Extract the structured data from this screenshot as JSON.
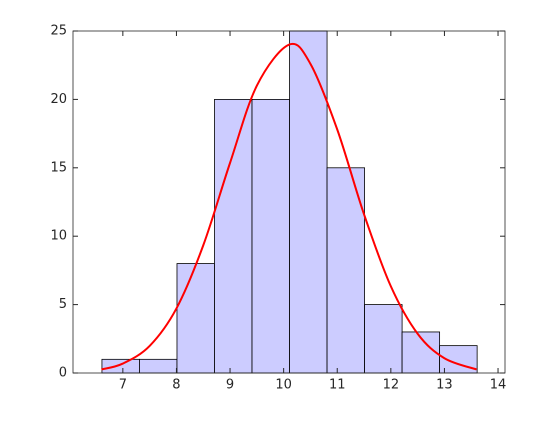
{
  "chart_data": {
    "type": "histogram",
    "bins": [
      6.61,
      7.31,
      8.01,
      8.71,
      9.41,
      10.11,
      10.81,
      11.51,
      12.21,
      12.91,
      13.61
    ],
    "counts": [
      1,
      1,
      8,
      20,
      20,
      25,
      15,
      5,
      3,
      2
    ],
    "color": "#ccccff",
    "edgecolor": "#000000",
    "xlim": [
      6.07,
      14.13
    ],
    "ylim": [
      0,
      25
    ],
    "xticks": [
      7,
      8,
      9,
      10,
      11,
      12,
      13,
      14
    ],
    "yticks": [
      0,
      5,
      10,
      15,
      20,
      25
    ],
    "fit": {
      "type": "line",
      "color": "#ff0000",
      "x": [
        6.6,
        7.0,
        7.5,
        8.0,
        8.5,
        9.0,
        9.5,
        10.1,
        10.5,
        11.0,
        11.5,
        12.0,
        12.5,
        13.0,
        13.6
      ],
      "values": [
        0.26,
        0.69,
        1.98,
        4.72,
        9.33,
        15.36,
        21.0,
        24,
        22.6,
        17.8,
        11.6,
        6.34,
        2.87,
        1.08,
        0.26
      ]
    }
  }
}
